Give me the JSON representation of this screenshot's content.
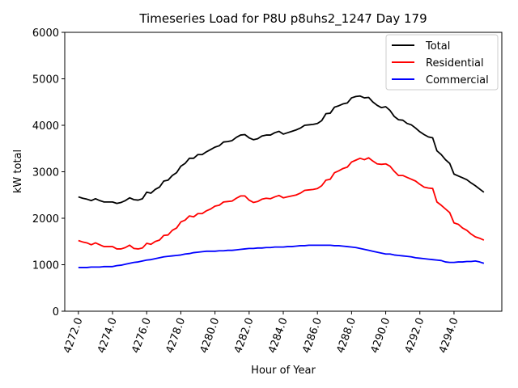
{
  "chart_data": {
    "type": "line",
    "title": "Timeseries Load for P8U p8uhs2_1247  Day 179",
    "xlabel": "Hour of Year",
    "ylabel": "kW total",
    "xlim": [
      4271.2,
      4296.8
    ],
    "ylim": [
      0,
      6000
    ],
    "xticks": [
      4272,
      4274,
      4276,
      4278,
      4280,
      4282,
      4284,
      4286,
      4288,
      4290,
      4292,
      4294
    ],
    "xtick_labels": [
      "4272.0",
      "4274.0",
      "4276.0",
      "4278.0",
      "4280.0",
      "4282.0",
      "4284.0",
      "4286.0",
      "4288.0",
      "4290.0",
      "4292.0",
      "4294.0"
    ],
    "yticks": [
      0,
      1000,
      2000,
      3000,
      4000,
      5000,
      6000
    ],
    "ytick_labels": [
      "0",
      "1000",
      "2000",
      "3000",
      "4000",
      "5000",
      "6000"
    ],
    "legend_position": "top-right",
    "x": [
      4272.0,
      4272.25,
      4272.5,
      4272.75,
      4273.0,
      4273.25,
      4273.5,
      4273.75,
      4274.0,
      4274.25,
      4274.5,
      4274.75,
      4275.0,
      4275.25,
      4275.5,
      4275.75,
      4276.0,
      4276.25,
      4276.5,
      4276.75,
      4277.0,
      4277.25,
      4277.5,
      4277.75,
      4278.0,
      4278.25,
      4278.5,
      4278.75,
      4279.0,
      4279.25,
      4279.5,
      4279.75,
      4280.0,
      4280.25,
      4280.5,
      4280.75,
      4281.0,
      4281.25,
      4281.5,
      4281.75,
      4282.0,
      4282.25,
      4282.5,
      4282.75,
      4283.0,
      4283.25,
      4283.5,
      4283.75,
      4284.0,
      4284.25,
      4284.5,
      4284.75,
      4285.0,
      4285.25,
      4285.5,
      4285.75,
      4286.0,
      4286.25,
      4286.5,
      4286.75,
      4287.0,
      4287.25,
      4287.5,
      4287.75,
      4288.0,
      4288.25,
      4288.5,
      4288.75,
      4289.0,
      4289.25,
      4289.5,
      4289.75,
      4290.0,
      4290.25,
      4290.5,
      4290.75,
      4291.0,
      4291.25,
      4291.5,
      4291.75,
      4292.0,
      4292.25,
      4292.5,
      4292.75,
      4293.0,
      4293.25,
      4293.5,
      4293.75,
      4294.0,
      4294.25,
      4294.5,
      4294.75,
      4295.0,
      4295.25,
      4295.5,
      4295.75
    ],
    "series": [
      {
        "name": "Total",
        "color": "#000000",
        "values": [
          2460,
          2430,
          2410,
          2380,
          2420,
          2380,
          2350,
          2350,
          2350,
          2320,
          2340,
          2380,
          2440,
          2400,
          2390,
          2420,
          2560,
          2540,
          2620,
          2670,
          2800,
          2820,
          2920,
          2980,
          3120,
          3180,
          3290,
          3290,
          3370,
          3370,
          3430,
          3480,
          3530,
          3560,
          3640,
          3650,
          3670,
          3740,
          3790,
          3800,
          3730,
          3690,
          3710,
          3770,
          3790,
          3790,
          3840,
          3870,
          3810,
          3840,
          3870,
          3900,
          3940,
          4000,
          4010,
          4020,
          4040,
          4100,
          4250,
          4260,
          4390,
          4420,
          4460,
          4480,
          4590,
          4620,
          4630,
          4590,
          4600,
          4500,
          4430,
          4380,
          4400,
          4320,
          4190,
          4120,
          4110,
          4040,
          4010,
          3940,
          3860,
          3800,
          3750,
          3730,
          3450,
          3370,
          3260,
          3180,
          2950,
          2910,
          2870,
          2830,
          2760,
          2700,
          2630,
          2560
        ]
      },
      {
        "name": "Residential",
        "color": "#ff0000",
        "values": [
          1520,
          1490,
          1470,
          1430,
          1470,
          1430,
          1390,
          1390,
          1390,
          1340,
          1340,
          1370,
          1420,
          1350,
          1340,
          1360,
          1460,
          1440,
          1500,
          1530,
          1630,
          1640,
          1740,
          1790,
          1920,
          1960,
          2050,
          2030,
          2100,
          2100,
          2160,
          2200,
          2260,
          2280,
          2350,
          2360,
          2370,
          2430,
          2480,
          2480,
          2390,
          2340,
          2360,
          2410,
          2430,
          2420,
          2460,
          2490,
          2440,
          2460,
          2480,
          2500,
          2540,
          2600,
          2610,
          2620,
          2640,
          2700,
          2820,
          2840,
          2980,
          3020,
          3070,
          3100,
          3210,
          3250,
          3290,
          3260,
          3300,
          3230,
          3170,
          3160,
          3170,
          3120,
          3010,
          2920,
          2920,
          2880,
          2840,
          2800,
          2730,
          2670,
          2650,
          2640,
          2350,
          2280,
          2200,
          2120,
          1900,
          1870,
          1790,
          1740,
          1660,
          1600,
          1570,
          1530
        ]
      },
      {
        "name": "Commercial",
        "color": "#0000ff",
        "values": [
          940,
          940,
          940,
          950,
          950,
          950,
          960,
          960,
          960,
          980,
          990,
          1010,
          1030,
          1050,
          1060,
          1080,
          1100,
          1110,
          1130,
          1150,
          1170,
          1180,
          1190,
          1200,
          1210,
          1230,
          1240,
          1260,
          1270,
          1280,
          1290,
          1290,
          1290,
          1300,
          1300,
          1310,
          1310,
          1320,
          1330,
          1340,
          1350,
          1350,
          1360,
          1360,
          1370,
          1370,
          1380,
          1380,
          1380,
          1390,
          1390,
          1400,
          1410,
          1410,
          1420,
          1420,
          1420,
          1420,
          1420,
          1420,
          1410,
          1410,
          1400,
          1390,
          1380,
          1370,
          1350,
          1330,
          1310,
          1290,
          1270,
          1250,
          1230,
          1230,
          1210,
          1200,
          1190,
          1180,
          1170,
          1150,
          1140,
          1130,
          1120,
          1110,
          1100,
          1090,
          1060,
          1050,
          1050,
          1060,
          1060,
          1070,
          1070,
          1080,
          1060,
          1030
        ]
      }
    ]
  }
}
